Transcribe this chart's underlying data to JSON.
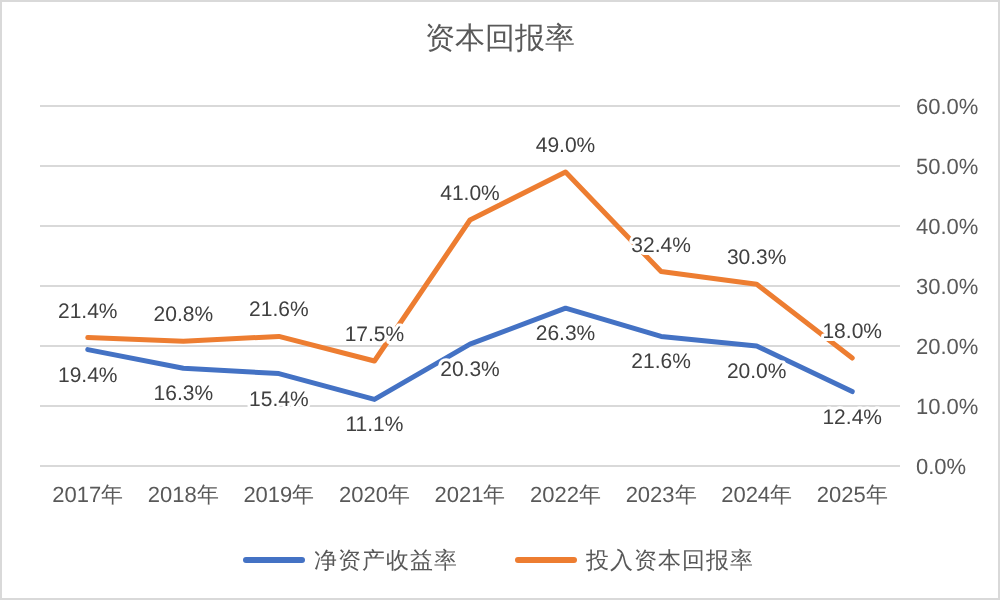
{
  "chart_data": {
    "type": "line",
    "title": "资本回报率",
    "categories": [
      "2017年",
      "2018年",
      "2019年",
      "2020年",
      "2021年",
      "2022年",
      "2023年",
      "2024年",
      "2025年"
    ],
    "series": [
      {
        "name": "净资产收益率",
        "color": "#4472c4",
        "values": [
          19.4,
          16.3,
          15.4,
          11.1,
          20.3,
          26.3,
          21.6,
          20.0,
          12.4
        ],
        "value_labels": [
          "19.4%",
          "16.3%",
          "15.4%",
          "11.1%",
          "20.3%",
          "26.3%",
          "21.6%",
          "20.0%",
          "12.4%"
        ],
        "axis": "y2"
      },
      {
        "name": "投入资本回报率",
        "color": "#ed7d31",
        "values": [
          21.4,
          20.8,
          21.6,
          17.5,
          41.0,
          49.0,
          32.4,
          30.3,
          18.0
        ],
        "value_labels": [
          "21.4%",
          "20.8%",
          "21.6%",
          "17.5%",
          "41.0%",
          "49.0%",
          "32.4%",
          "30.3%",
          "18.0%"
        ],
        "axis": "y2"
      }
    ],
    "y2lim": [
      0,
      60
    ],
    "y2ticks": [
      {
        "value": 0,
        "label": "0.0%"
      },
      {
        "value": 10,
        "label": "10.0%"
      },
      {
        "value": 20,
        "label": "20.0%"
      },
      {
        "value": 30,
        "label": "30.0%"
      },
      {
        "value": 40,
        "label": "40.0%"
      },
      {
        "value": 50,
        "label": "50.0%"
      },
      {
        "value": 60,
        "label": "60.0%"
      }
    ],
    "grid": "y",
    "legend": "bottom",
    "marker": "none",
    "line_style": "solid"
  }
}
